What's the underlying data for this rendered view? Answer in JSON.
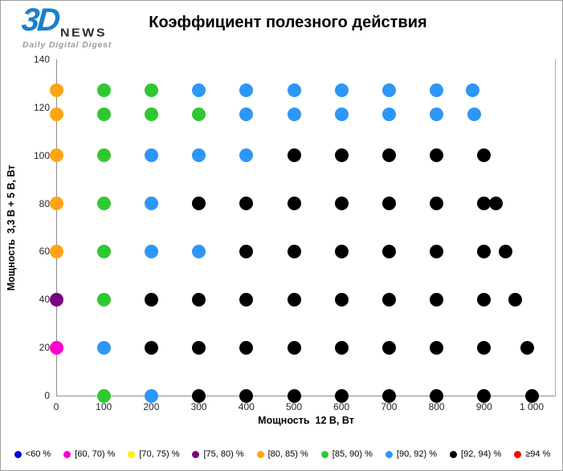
{
  "logo": {
    "part1": "3D",
    "part2": "NEWS",
    "tagline": "Daily Digital Digest"
  },
  "chart_data": {
    "type": "scatter",
    "title": "Коэффициент полезного действия",
    "xlabel": "Мощность  12 В, Вт",
    "ylabel": "Мощность  3,3 В + 5 В, Вт",
    "xlim": [
      0,
      1050
    ],
    "ylim": [
      0,
      140
    ],
    "grid": false,
    "legend_position": "bottom",
    "x_ticks": {
      "values": [
        0,
        100,
        200,
        300,
        400,
        500,
        600,
        700,
        800,
        900,
        1000
      ],
      "labels": [
        "0",
        "100",
        "200",
        "300",
        "400",
        "500",
        "600",
        "700",
        "800",
        "900",
        "1 000"
      ]
    },
    "y_ticks": {
      "values": [
        0,
        20,
        40,
        60,
        80,
        100,
        120,
        140
      ],
      "labels": [
        "0",
        "20",
        "40",
        "60",
        "80",
        "100",
        "120",
        "140"
      ]
    },
    "legend": [
      {
        "label": "<60 %",
        "color": "#0000DD"
      },
      {
        "label": "[60, 70) %",
        "color": "#FF00CC"
      },
      {
        "label": "[70, 75) %",
        "color": "#FFEE00"
      },
      {
        "label": "[75, 80) %",
        "color": "#7A0080"
      },
      {
        "label": "[80, 85) %",
        "color": "#FFA413"
      },
      {
        "label": "[85, 90) %",
        "color": "#30C830"
      },
      {
        "label": "[90, 92) %",
        "color": "#2E96F7"
      },
      {
        "label": "[92, 94) %",
        "color": "#000000"
      },
      {
        "label": "≥94 %",
        "color": "#FF0000"
      }
    ],
    "points_format": "[x_watts_12V, y_watts_3.3V_5V, legend_index]",
    "points": [
      [
        0,
        127,
        4
      ],
      [
        100,
        127,
        5
      ],
      [
        200,
        127,
        5
      ],
      [
        300,
        127,
        6
      ],
      [
        400,
        127,
        6
      ],
      [
        500,
        127,
        6
      ],
      [
        600,
        127,
        6
      ],
      [
        700,
        127,
        6
      ],
      [
        800,
        127,
        6
      ],
      [
        875,
        127,
        6
      ],
      [
        0,
        117,
        4
      ],
      [
        100,
        117,
        5
      ],
      [
        200,
        117,
        5
      ],
      [
        300,
        117,
        5
      ],
      [
        400,
        117,
        6
      ],
      [
        500,
        117,
        6
      ],
      [
        600,
        117,
        6
      ],
      [
        700,
        117,
        6
      ],
      [
        800,
        117,
        6
      ],
      [
        880,
        117,
        6
      ],
      [
        0,
        100,
        4
      ],
      [
        100,
        100,
        5
      ],
      [
        200,
        100,
        6
      ],
      [
        300,
        100,
        6
      ],
      [
        400,
        100,
        6
      ],
      [
        500,
        100,
        7
      ],
      [
        600,
        100,
        7
      ],
      [
        700,
        100,
        7
      ],
      [
        800,
        100,
        7
      ],
      [
        900,
        100,
        7
      ],
      [
        0,
        80,
        4
      ],
      [
        100,
        80,
        5
      ],
      [
        200,
        80,
        6
      ],
      [
        300,
        80,
        7
      ],
      [
        400,
        80,
        7
      ],
      [
        500,
        80,
        7
      ],
      [
        600,
        80,
        7
      ],
      [
        700,
        80,
        7
      ],
      [
        800,
        80,
        7
      ],
      [
        900,
        80,
        7
      ],
      [
        925,
        80,
        7
      ],
      [
        0,
        60,
        4
      ],
      [
        100,
        60,
        5
      ],
      [
        200,
        60,
        6
      ],
      [
        300,
        60,
        6
      ],
      [
        400,
        60,
        7
      ],
      [
        500,
        60,
        7
      ],
      [
        600,
        60,
        7
      ],
      [
        700,
        60,
        7
      ],
      [
        800,
        60,
        7
      ],
      [
        900,
        60,
        7
      ],
      [
        945,
        60,
        7
      ],
      [
        0,
        40,
        3
      ],
      [
        100,
        40,
        5
      ],
      [
        200,
        40,
        7
      ],
      [
        300,
        40,
        7
      ],
      [
        400,
        40,
        7
      ],
      [
        500,
        40,
        7
      ],
      [
        600,
        40,
        7
      ],
      [
        700,
        40,
        7
      ],
      [
        800,
        40,
        7
      ],
      [
        900,
        40,
        7
      ],
      [
        965,
        40,
        7
      ],
      [
        0,
        20,
        1
      ],
      [
        100,
        20,
        6
      ],
      [
        200,
        20,
        7
      ],
      [
        300,
        20,
        7
      ],
      [
        400,
        20,
        7
      ],
      [
        500,
        20,
        7
      ],
      [
        600,
        20,
        7
      ],
      [
        700,
        20,
        7
      ],
      [
        800,
        20,
        7
      ],
      [
        900,
        20,
        7
      ],
      [
        990,
        20,
        7
      ],
      [
        100,
        0,
        5
      ],
      [
        200,
        0,
        6
      ],
      [
        300,
        0,
        7
      ],
      [
        400,
        0,
        7
      ],
      [
        500,
        0,
        7
      ],
      [
        600,
        0,
        7
      ],
      [
        700,
        0,
        7
      ],
      [
        800,
        0,
        7
      ],
      [
        900,
        0,
        7
      ],
      [
        1000,
        0,
        7
      ]
    ]
  }
}
